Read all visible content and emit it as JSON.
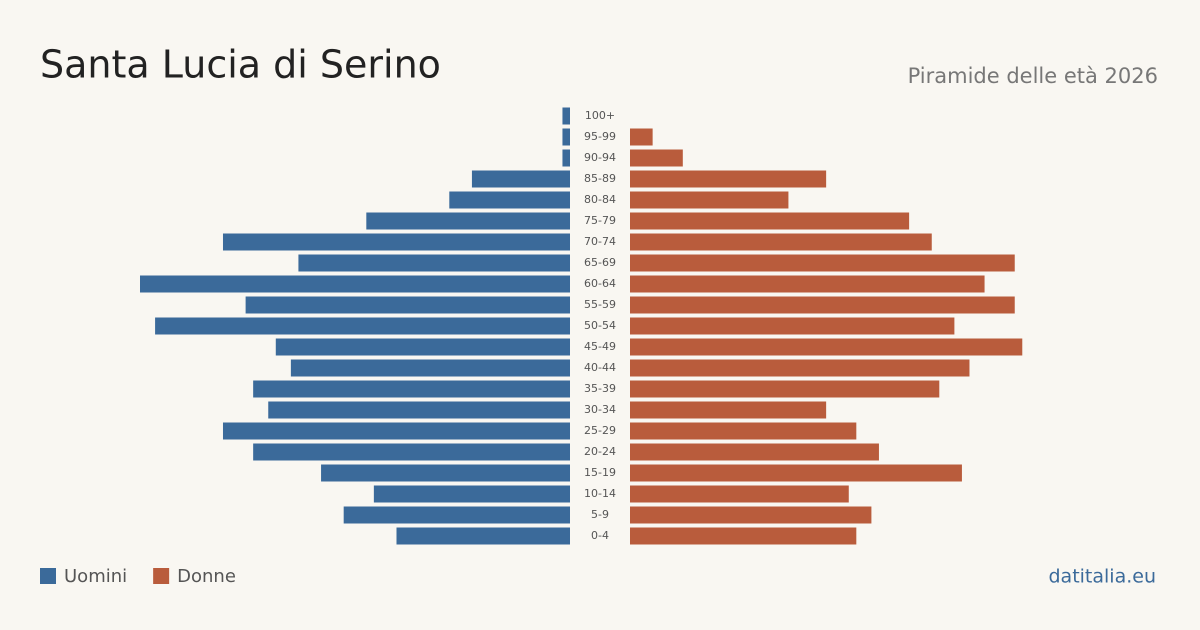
{
  "chart_data": {
    "type": "pyramid",
    "title": "Santa Lucia di Serino",
    "subtitle": "Piramide delle età 2026",
    "source": "datitalia.eu",
    "categories": [
      "100+",
      "95-99",
      "90-94",
      "85-89",
      "80-84",
      "75-79",
      "70-74",
      "65-69",
      "60-64",
      "55-59",
      "50-54",
      "45-49",
      "40-44",
      "35-39",
      "30-34",
      "25-29",
      "20-24",
      "15-19",
      "10-14",
      "5-9",
      "0-4"
    ],
    "series": [
      {
        "name": "Uomini",
        "color": "#3b6a9a",
        "values": [
          1,
          1,
          1,
          13,
          16,
          27,
          46,
          36,
          57,
          43,
          55,
          39,
          37,
          42,
          40,
          46,
          42,
          33,
          26,
          30,
          23
        ]
      },
      {
        "name": "Donne",
        "color": "#b95c3c",
        "values": [
          0,
          3,
          7,
          26,
          21,
          37,
          40,
          51,
          47,
          51,
          43,
          52,
          45,
          41,
          26,
          30,
          33,
          44,
          29,
          32,
          30
        ]
      }
    ]
  }
}
